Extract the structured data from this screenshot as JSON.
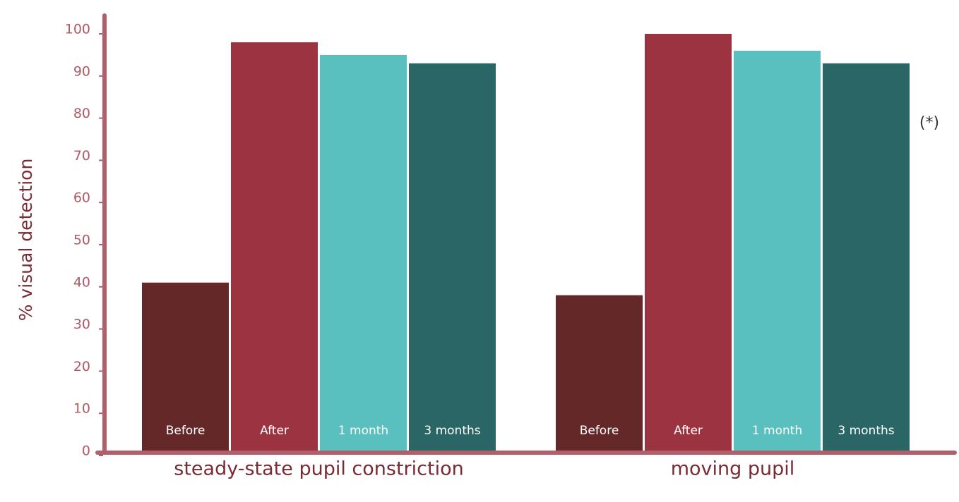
{
  "chart_data": {
    "type": "bar",
    "y_label": "% visual detection",
    "annotation": "(*)",
    "categories": [
      "steady-state pupil constriction",
      "moving pupil"
    ],
    "series": [
      {
        "name": "Before",
        "color": "#652828",
        "values": [
          40,
          37
        ]
      },
      {
        "name": "After",
        "color": "#9c3341",
        "values": [
          97,
          99
        ]
      },
      {
        "name": "1 month",
        "color": "#59bfbf",
        "values": [
          94,
          95
        ]
      },
      {
        "name": "3 months",
        "color": "#2a6666",
        "values": [
          92,
          92
        ]
      }
    ],
    "ylim": [
      0,
      100
    ],
    "yticks": [
      0,
      10,
      20,
      30,
      40,
      50,
      60,
      70,
      80,
      90,
      100
    ],
    "grid": false
  }
}
